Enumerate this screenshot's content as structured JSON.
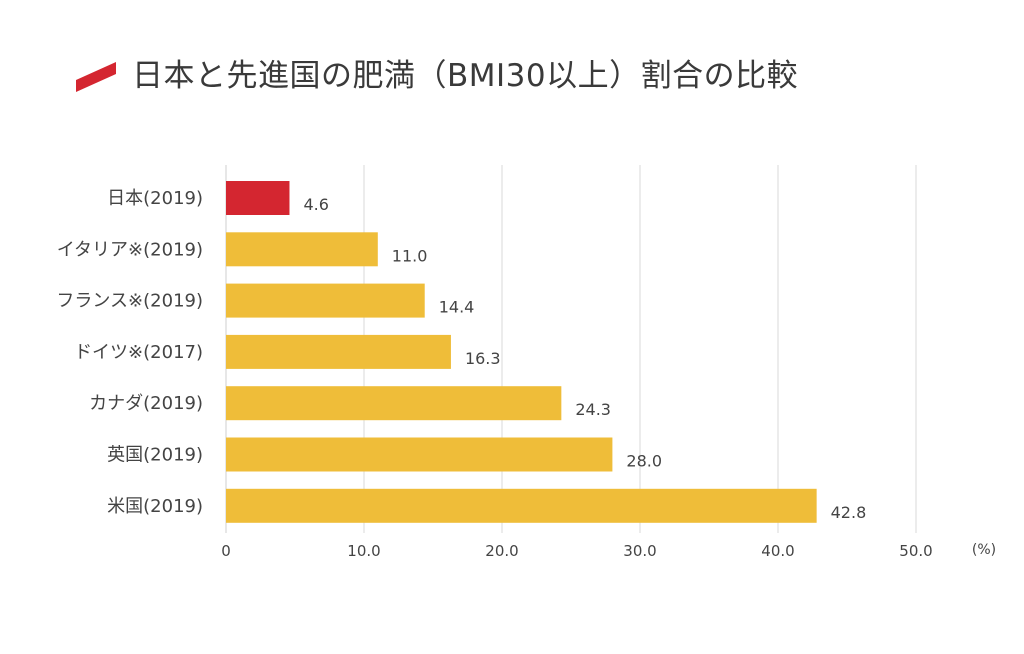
{
  "title": "日本と先進国の肥満（BMI30以上）割合の比較",
  "colors": {
    "highlight": "#d42630",
    "bar": "#efbd39",
    "grid": "#d9d9d9",
    "title_mark": "#d42630"
  },
  "chart_data": {
    "type": "bar",
    "orientation": "horizontal",
    "categories": [
      "日本(2019)",
      "イタリア※(2019)",
      "フランス※(2019)",
      "ドイツ※(2017)",
      "カナダ(2019)",
      "英国(2019)",
      "米国(2019)"
    ],
    "values": [
      4.6,
      11.0,
      14.4,
      16.3,
      24.3,
      28.0,
      42.8
    ],
    "value_labels": [
      "4.6",
      "11.0",
      "14.4",
      "16.3",
      "24.3",
      "28.0",
      "42.8"
    ],
    "highlight_index": 0,
    "xlim": [
      0,
      50
    ],
    "xticks": [
      0,
      10,
      20,
      30,
      40,
      50
    ],
    "xtick_labels": [
      "0",
      "10.0",
      "20.0",
      "30.0",
      "40.0",
      "50.0"
    ],
    "unit_label": "(%)",
    "grid": true,
    "legend": false
  }
}
